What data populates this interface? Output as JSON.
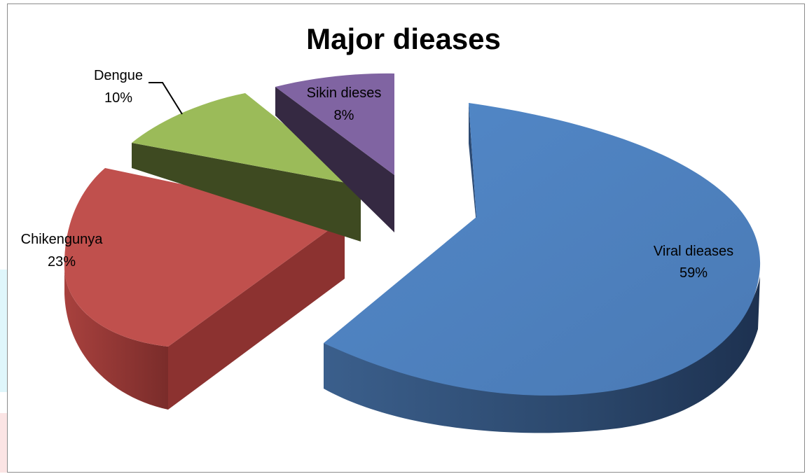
{
  "chart_data": {
    "type": "pie",
    "title": "Major dieases",
    "style": "3d-exploded",
    "slices": [
      {
        "name": "Viral dieases",
        "value": 59,
        "label": "59%",
        "color": "#4f81bd"
      },
      {
        "name": "Chikengunya",
        "value": 23,
        "label": "23%",
        "color": "#c0504d"
      },
      {
        "name": "Dengue",
        "value": 10,
        "label": "10%",
        "color": "#9bbb59"
      },
      {
        "name": "Sikin dieses",
        "value": 8,
        "label": "8%",
        "color": "#8064a2"
      }
    ]
  }
}
